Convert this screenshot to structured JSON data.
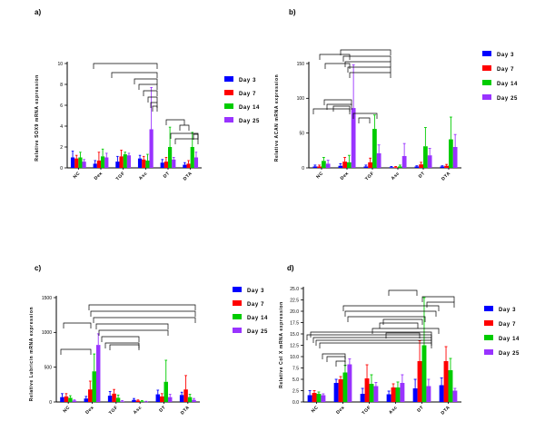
{
  "chart_data": [
    {
      "type": "bar",
      "panel_label": "a)",
      "ylabel": "Relative SOX9 mRNA expression",
      "ylim": [
        0,
        10
      ],
      "yticks": [
        0,
        2,
        4,
        6,
        8,
        10
      ],
      "categories": [
        "NC",
        "Dex",
        "TGF",
        "Asc",
        "DT",
        "DTA"
      ],
      "series": [
        {
          "name": "Day 3",
          "values": [
            1.0,
            0.4,
            0.6,
            0.9,
            0.5,
            0.3
          ],
          "errors": [
            0.6,
            0.3,
            0.5,
            0.3,
            0.3,
            0.2
          ]
        },
        {
          "name": "Day 7",
          "values": [
            0.9,
            0.7,
            1.1,
            0.8,
            0.6,
            0.4
          ],
          "errors": [
            0.3,
            0.8,
            0.6,
            0.3,
            0.4,
            0.3
          ]
        },
        {
          "name": "Day 14",
          "values": [
            1.0,
            1.1,
            1.3,
            0.7,
            2.0,
            2.0
          ],
          "errors": [
            0.5,
            0.7,
            0.2,
            0.6,
            1.9,
            1.4
          ]
        },
        {
          "name": "Day 25",
          "values": [
            0.6,
            1.0,
            1.2,
            3.7,
            0.8,
            1.0
          ],
          "errors": [
            0.2,
            0.4,
            0.2,
            4.0,
            0.2,
            0.5
          ]
        }
      ],
      "legend_position": "right"
    },
    {
      "type": "bar",
      "panel_label": "b)",
      "ylabel": "Relative ACAN mRNA expression",
      "ylim": [
        0,
        150
      ],
      "yticks": [
        0,
        50,
        100,
        150
      ],
      "categories": [
        "NC",
        "Dex",
        "TGF",
        "Asc",
        "DT",
        "DTA"
      ],
      "series": [
        {
          "name": "Day 3",
          "values": [
            2,
            3,
            2,
            1,
            2,
            2
          ],
          "errors": [
            2,
            3,
            2,
            1,
            1,
            1
          ]
        },
        {
          "name": "Day 7",
          "values": [
            2,
            9,
            8,
            1,
            5,
            3
          ],
          "errors": [
            2,
            6,
            6,
            1,
            3,
            2
          ]
        },
        {
          "name": "Day 14",
          "values": [
            10,
            8,
            56,
            2,
            31,
            41
          ],
          "errors": [
            5,
            10,
            20,
            2,
            27,
            32
          ]
        },
        {
          "name": "Day 25",
          "values": [
            6,
            86,
            21,
            17,
            18,
            30
          ],
          "errors": [
            5,
            62,
            12,
            18,
            10,
            18
          ]
        }
      ],
      "legend_position": "right"
    },
    {
      "type": "bar",
      "panel_label": "c)",
      "ylabel": "Relative Lubricin mRNA expression",
      "ylim": [
        0,
        1500
      ],
      "yticks": [
        0,
        500,
        1000,
        1500
      ],
      "categories": [
        "NC",
        "Dex",
        "TGF",
        "Asc",
        "DT",
        "DTA"
      ],
      "series": [
        {
          "name": "Day 3",
          "values": [
            70,
            50,
            90,
            30,
            110,
            100
          ],
          "errors": [
            50,
            30,
            60,
            20,
            60,
            40
          ]
        },
        {
          "name": "Day 7",
          "values": [
            80,
            180,
            120,
            20,
            80,
            180
          ],
          "errors": [
            40,
            120,
            60,
            10,
            40,
            200
          ]
        },
        {
          "name": "Day 14",
          "values": [
            60,
            440,
            60,
            10,
            290,
            70
          ],
          "errors": [
            30,
            250,
            40,
            10,
            310,
            40
          ]
        },
        {
          "name": "Day 25",
          "values": [
            20,
            820,
            10,
            5,
            70,
            30
          ],
          "errors": [
            10,
            160,
            10,
            5,
            40,
            20
          ]
        }
      ],
      "legend_position": "right"
    },
    {
      "type": "bar",
      "panel_label": "d)",
      "ylabel": "Relative Col X mRNA expression",
      "ylim": [
        0,
        25
      ],
      "yticks": [
        0.0,
        2.5,
        5.0,
        7.5,
        10.0,
        12.5,
        15.0,
        17.5,
        20.0,
        22.5,
        25.0
      ],
      "categories": [
        "NC",
        "Dex",
        "TGF",
        "Asc",
        "DT",
        "DTA"
      ],
      "series": [
        {
          "name": "Day 3",
          "values": [
            1.5,
            4.2,
            1.8,
            1.7,
            3.0,
            3.7
          ],
          "errors": [
            1.0,
            0.8,
            1.2,
            0.7,
            2.0,
            1.6
          ]
        },
        {
          "name": "Day 7",
          "values": [
            2.0,
            5.0,
            5.2,
            3.2,
            9.0,
            9.0
          ],
          "errors": [
            0.5,
            0.6,
            3.0,
            0.8,
            4.5,
            3.2
          ]
        },
        {
          "name": "Day 14",
          "values": [
            1.8,
            6.5,
            4.0,
            3.2,
            12.5,
            7.0
          ],
          "errors": [
            0.4,
            1.6,
            2.0,
            1.2,
            10.5,
            2.6
          ]
        },
        {
          "name": "Day 25",
          "values": [
            1.5,
            8.3,
            3.5,
            4.2,
            3.5,
            2.5
          ],
          "errors": [
            0.3,
            1.2,
            0.8,
            1.8,
            1.5,
            0.5
          ]
        }
      ],
      "legend_position": "right"
    }
  ],
  "colors": {
    "Day 3": "#0000ff",
    "Day 7": "#ff0000",
    "Day 14": "#00cc00",
    "Day 25": "#9933ff"
  }
}
